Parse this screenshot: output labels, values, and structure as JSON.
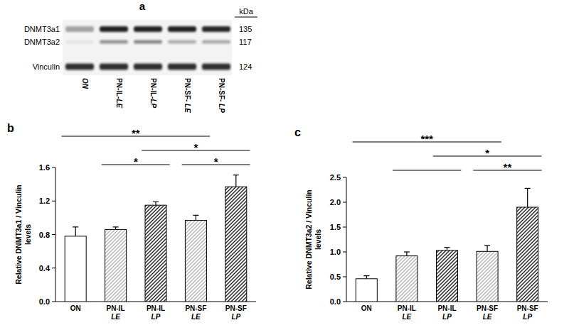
{
  "blot": {
    "title": "a",
    "unit": "kDa",
    "bands": [
      {
        "label": "DNMT3a1",
        "kda": 135
      },
      {
        "label": "DNMT3a2",
        "kda": 117
      },
      {
        "label": "Vinculin",
        "kda": 124
      }
    ],
    "lanes": [
      "ON",
      "PN-IL-LE",
      "PN-IL-LP",
      "PN-SF- LE",
      "PN-SF- LP"
    ]
  },
  "chart_data": [
    {
      "type": "bar",
      "title": "b",
      "y_label": "Relative DNMT3a1 / Vinculin levels",
      "categories": [
        "ON",
        "PN-IL LE",
        "PN-IL LP",
        "PN-SF LE",
        "PN-SF LP"
      ],
      "values": [
        0.78,
        0.86,
        1.15,
        0.97,
        1.37
      ],
      "errors": [
        0.11,
        0.03,
        0.04,
        0.06,
        0.14
      ],
      "colors": [
        "#ffffff",
        "#b8b8b8",
        "#2a2a2a",
        "#b8b8b8",
        "#2a2a2a"
      ],
      "ylim": [
        0,
        1.6
      ],
      "yticks": [
        {
          "value": 0,
          "label": "0.0"
        },
        0.4,
        0.8,
        1.2,
        1.6
      ],
      "annotations": [
        {
          "text": "**",
          "from": "ON",
          "to": "PN-SF LE"
        },
        {
          "text": "*",
          "from": "PN-IL LP",
          "to": "PN-SF LP"
        },
        {
          "text": "*",
          "from": "PN-IL LE",
          "to": "PN-IL LP"
        },
        {
          "text": "*",
          "from": "PN-SF LE",
          "to": "PN-SF LP"
        }
      ]
    },
    {
      "type": "bar",
      "title": "c",
      "y_label": "Relative DNMT3a2 / Vinculin levels",
      "categories": [
        "ON",
        "PN-IL LE",
        "PN-IL LP",
        "PN-SF LE",
        "PN-SF LP"
      ],
      "values": [
        0.46,
        0.92,
        1.03,
        1.01,
        1.9
      ],
      "errors": [
        0.06,
        0.08,
        0.06,
        0.12,
        0.38
      ],
      "colors": [
        "#ffffff",
        "#b8b8b8",
        "#2a2a2a",
        "#b8b8b8",
        "#2a2a2a"
      ],
      "ylim": [
        0,
        2.5
      ],
      "yticks": [
        {
          "value": 0,
          "label": "0.0"
        },
        0.5,
        {
          "value": 1,
          "label": "1.0"
        },
        1.5,
        {
          "value": 2,
          "label": "2.0"
        },
        2.5
      ],
      "annotations": [
        {
          "text": "***",
          "from": "ON",
          "to": "PN-SF LE"
        },
        {
          "text": "*",
          "from": "PN-IL LP",
          "to": "PN-SF LP"
        },
        {
          "from": "PN-IL LE",
          "to": "PN-IL LP"
        },
        {
          "text": "**",
          "from": "PN-SF LE",
          "to": "PN-SF LP"
        }
      ]
    }
  ]
}
